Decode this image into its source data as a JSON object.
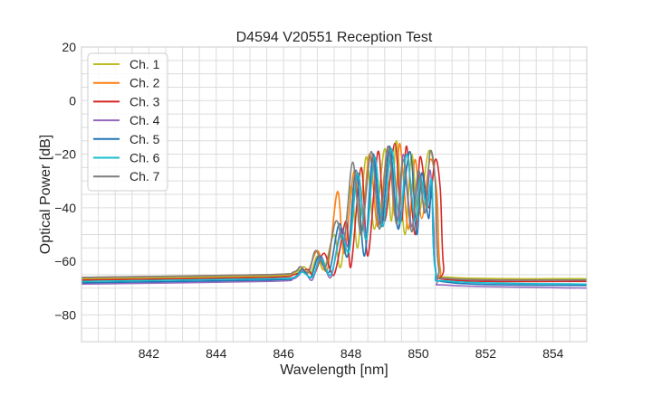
{
  "chart_data": {
    "type": "line",
    "title": "D4594 V20551 Reception Test",
    "xlabel": "Wavelength [nm]",
    "ylabel": "Optical Power [dB]",
    "xlim": [
      840,
      855
    ],
    "ylim": [
      -90,
      20
    ],
    "xticks": [
      842,
      844,
      846,
      848,
      850,
      852,
      854
    ],
    "xtick_labels": [
      "842",
      "844",
      "846",
      "848",
      "850",
      "852",
      "854"
    ],
    "yticks": [
      -80,
      -60,
      -40,
      -20,
      0,
      20
    ],
    "ytick_labels": [
      "−80",
      "−60",
      "−40",
      "−20",
      "0",
      "20"
    ],
    "grid": true,
    "minor_grid": true,
    "legend_position": "upper-left",
    "series": [
      {
        "name": "Ch. 1",
        "color": "#bcbd22",
        "points": [
          [
            840,
            -66.5
          ],
          [
            845.5,
            -65.5
          ],
          [
            846.3,
            -64.5
          ],
          [
            846.6,
            -62
          ],
          [
            846.8,
            -64.5
          ],
          [
            847.0,
            -58
          ],
          [
            847.2,
            -63
          ],
          [
            847.5,
            -50
          ],
          [
            847.7,
            -62
          ],
          [
            848.0,
            -32
          ],
          [
            848.2,
            -55
          ],
          [
            848.45,
            -21
          ],
          [
            848.7,
            -48
          ],
          [
            849.0,
            -18
          ],
          [
            849.2,
            -45
          ],
          [
            849.35,
            -15
          ],
          [
            849.6,
            -50
          ],
          [
            849.8,
            -20
          ],
          [
            850.0,
            -43
          ],
          [
            850.3,
            -19
          ],
          [
            850.5,
            -30
          ],
          [
            850.6,
            -62
          ],
          [
            851,
            -66
          ],
          [
            855,
            -66.5
          ]
        ]
      },
      {
        "name": "Ch. 2",
        "color": "#ff7f0e",
        "points": [
          [
            840,
            -66
          ],
          [
            845.5,
            -65
          ],
          [
            846.3,
            -64
          ],
          [
            846.5,
            -62
          ],
          [
            846.7,
            -64.5
          ],
          [
            847.0,
            -56
          ],
          [
            847.3,
            -63
          ],
          [
            847.6,
            -34
          ],
          [
            847.8,
            -57
          ],
          [
            848.1,
            -26
          ],
          [
            848.3,
            -50
          ],
          [
            848.55,
            -20
          ],
          [
            848.8,
            -47
          ],
          [
            849.1,
            -17
          ],
          [
            849.3,
            -43
          ],
          [
            849.45,
            -16
          ],
          [
            849.7,
            -48
          ],
          [
            849.9,
            -22
          ],
          [
            850.1,
            -44
          ],
          [
            850.35,
            -22
          ],
          [
            850.55,
            -35
          ],
          [
            850.65,
            -63
          ],
          [
            851,
            -66.5
          ],
          [
            855,
            -67
          ]
        ]
      },
      {
        "name": "Ch. 3",
        "color": "#d62728",
        "points": [
          [
            840,
            -67
          ],
          [
            845.5,
            -66
          ],
          [
            846.3,
            -65
          ],
          [
            846.7,
            -63
          ],
          [
            846.9,
            -65
          ],
          [
            847.2,
            -57
          ],
          [
            847.5,
            -65
          ],
          [
            847.85,
            -45
          ],
          [
            848.0,
            -62
          ],
          [
            848.3,
            -25
          ],
          [
            848.5,
            -58
          ],
          [
            848.8,
            -19
          ],
          [
            849.0,
            -45
          ],
          [
            849.3,
            -16
          ],
          [
            849.5,
            -45
          ],
          [
            849.65,
            -17
          ],
          [
            849.9,
            -50
          ],
          [
            850.05,
            -21
          ],
          [
            850.3,
            -40
          ],
          [
            850.5,
            -22
          ],
          [
            850.65,
            -33
          ],
          [
            850.75,
            -62
          ],
          [
            851,
            -67
          ],
          [
            855,
            -67.5
          ]
        ]
      },
      {
        "name": "Ch. 4",
        "color": "#9467bd",
        "points": [
          [
            840,
            -68.5
          ],
          [
            845.5,
            -67.5
          ],
          [
            846.3,
            -66.5
          ],
          [
            846.6,
            -63.5
          ],
          [
            846.85,
            -67
          ],
          [
            847.1,
            -58
          ],
          [
            847.4,
            -66
          ],
          [
            847.7,
            -48
          ],
          [
            847.95,
            -54
          ],
          [
            848.2,
            -27
          ],
          [
            848.45,
            -50
          ],
          [
            848.65,
            -21
          ],
          [
            848.9,
            -47
          ],
          [
            849.15,
            -18
          ],
          [
            849.4,
            -48
          ],
          [
            849.55,
            -20
          ],
          [
            849.8,
            -47
          ],
          [
            850.0,
            -27
          ],
          [
            850.2,
            -42
          ],
          [
            850.35,
            -26
          ],
          [
            850.45,
            -45
          ],
          [
            850.55,
            -66
          ],
          [
            851,
            -69
          ],
          [
            855,
            -70
          ]
        ]
      },
      {
        "name": "Ch. 5",
        "color": "#1f77b4",
        "points": [
          [
            840,
            -68
          ],
          [
            845.5,
            -67
          ],
          [
            846.3,
            -66
          ],
          [
            846.55,
            -63
          ],
          [
            846.8,
            -66
          ],
          [
            847.05,
            -58
          ],
          [
            847.35,
            -64
          ],
          [
            847.65,
            -46
          ],
          [
            847.9,
            -58
          ],
          [
            848.15,
            -26
          ],
          [
            848.4,
            -58
          ],
          [
            848.65,
            -20
          ],
          [
            848.9,
            -47
          ],
          [
            849.15,
            -17
          ],
          [
            849.4,
            -48
          ],
          [
            849.75,
            -19
          ],
          [
            849.95,
            -50
          ],
          [
            850.1,
            -27
          ],
          [
            850.3,
            -44
          ],
          [
            850.4,
            -32
          ],
          [
            850.5,
            -62
          ],
          [
            851,
            -68
          ],
          [
            855,
            -69
          ]
        ]
      },
      {
        "name": "Ch. 6",
        "color": "#17becf",
        "points": [
          [
            840,
            -67.5
          ],
          [
            845.5,
            -66.5
          ],
          [
            846.3,
            -66
          ],
          [
            846.55,
            -64
          ],
          [
            846.85,
            -66
          ],
          [
            847.1,
            -59
          ],
          [
            847.4,
            -65
          ],
          [
            847.7,
            -50
          ],
          [
            847.95,
            -56
          ],
          [
            848.2,
            -27
          ],
          [
            848.45,
            -52
          ],
          [
            848.7,
            -21
          ],
          [
            848.95,
            -47
          ],
          [
            849.2,
            -18
          ],
          [
            849.45,
            -46
          ],
          [
            849.65,
            -20
          ],
          [
            849.9,
            -45
          ],
          [
            850.05,
            -28
          ],
          [
            850.25,
            -40
          ],
          [
            850.4,
            -30
          ],
          [
            850.5,
            -63
          ],
          [
            851,
            -67.5
          ],
          [
            855,
            -68.5
          ]
        ]
      },
      {
        "name": "Ch. 7",
        "color": "#7f7f7f",
        "points": [
          [
            840,
            -66
          ],
          [
            845.5,
            -65
          ],
          [
            846.3,
            -64
          ],
          [
            846.5,
            -62
          ],
          [
            846.75,
            -64
          ],
          [
            846.95,
            -56
          ],
          [
            847.25,
            -62
          ],
          [
            847.55,
            -45
          ],
          [
            847.8,
            -52
          ],
          [
            848.05,
            -23
          ],
          [
            848.3,
            -50
          ],
          [
            848.6,
            -19
          ],
          [
            848.85,
            -48
          ],
          [
            849.1,
            -17
          ],
          [
            849.35,
            -46
          ],
          [
            849.55,
            -22
          ],
          [
            849.8,
            -49
          ],
          [
            850.0,
            -26
          ],
          [
            850.2,
            -42
          ],
          [
            850.35,
            -19
          ],
          [
            850.5,
            -30
          ],
          [
            850.6,
            -62
          ],
          [
            851,
            -66.5
          ],
          [
            855,
            -67
          ]
        ]
      }
    ]
  }
}
